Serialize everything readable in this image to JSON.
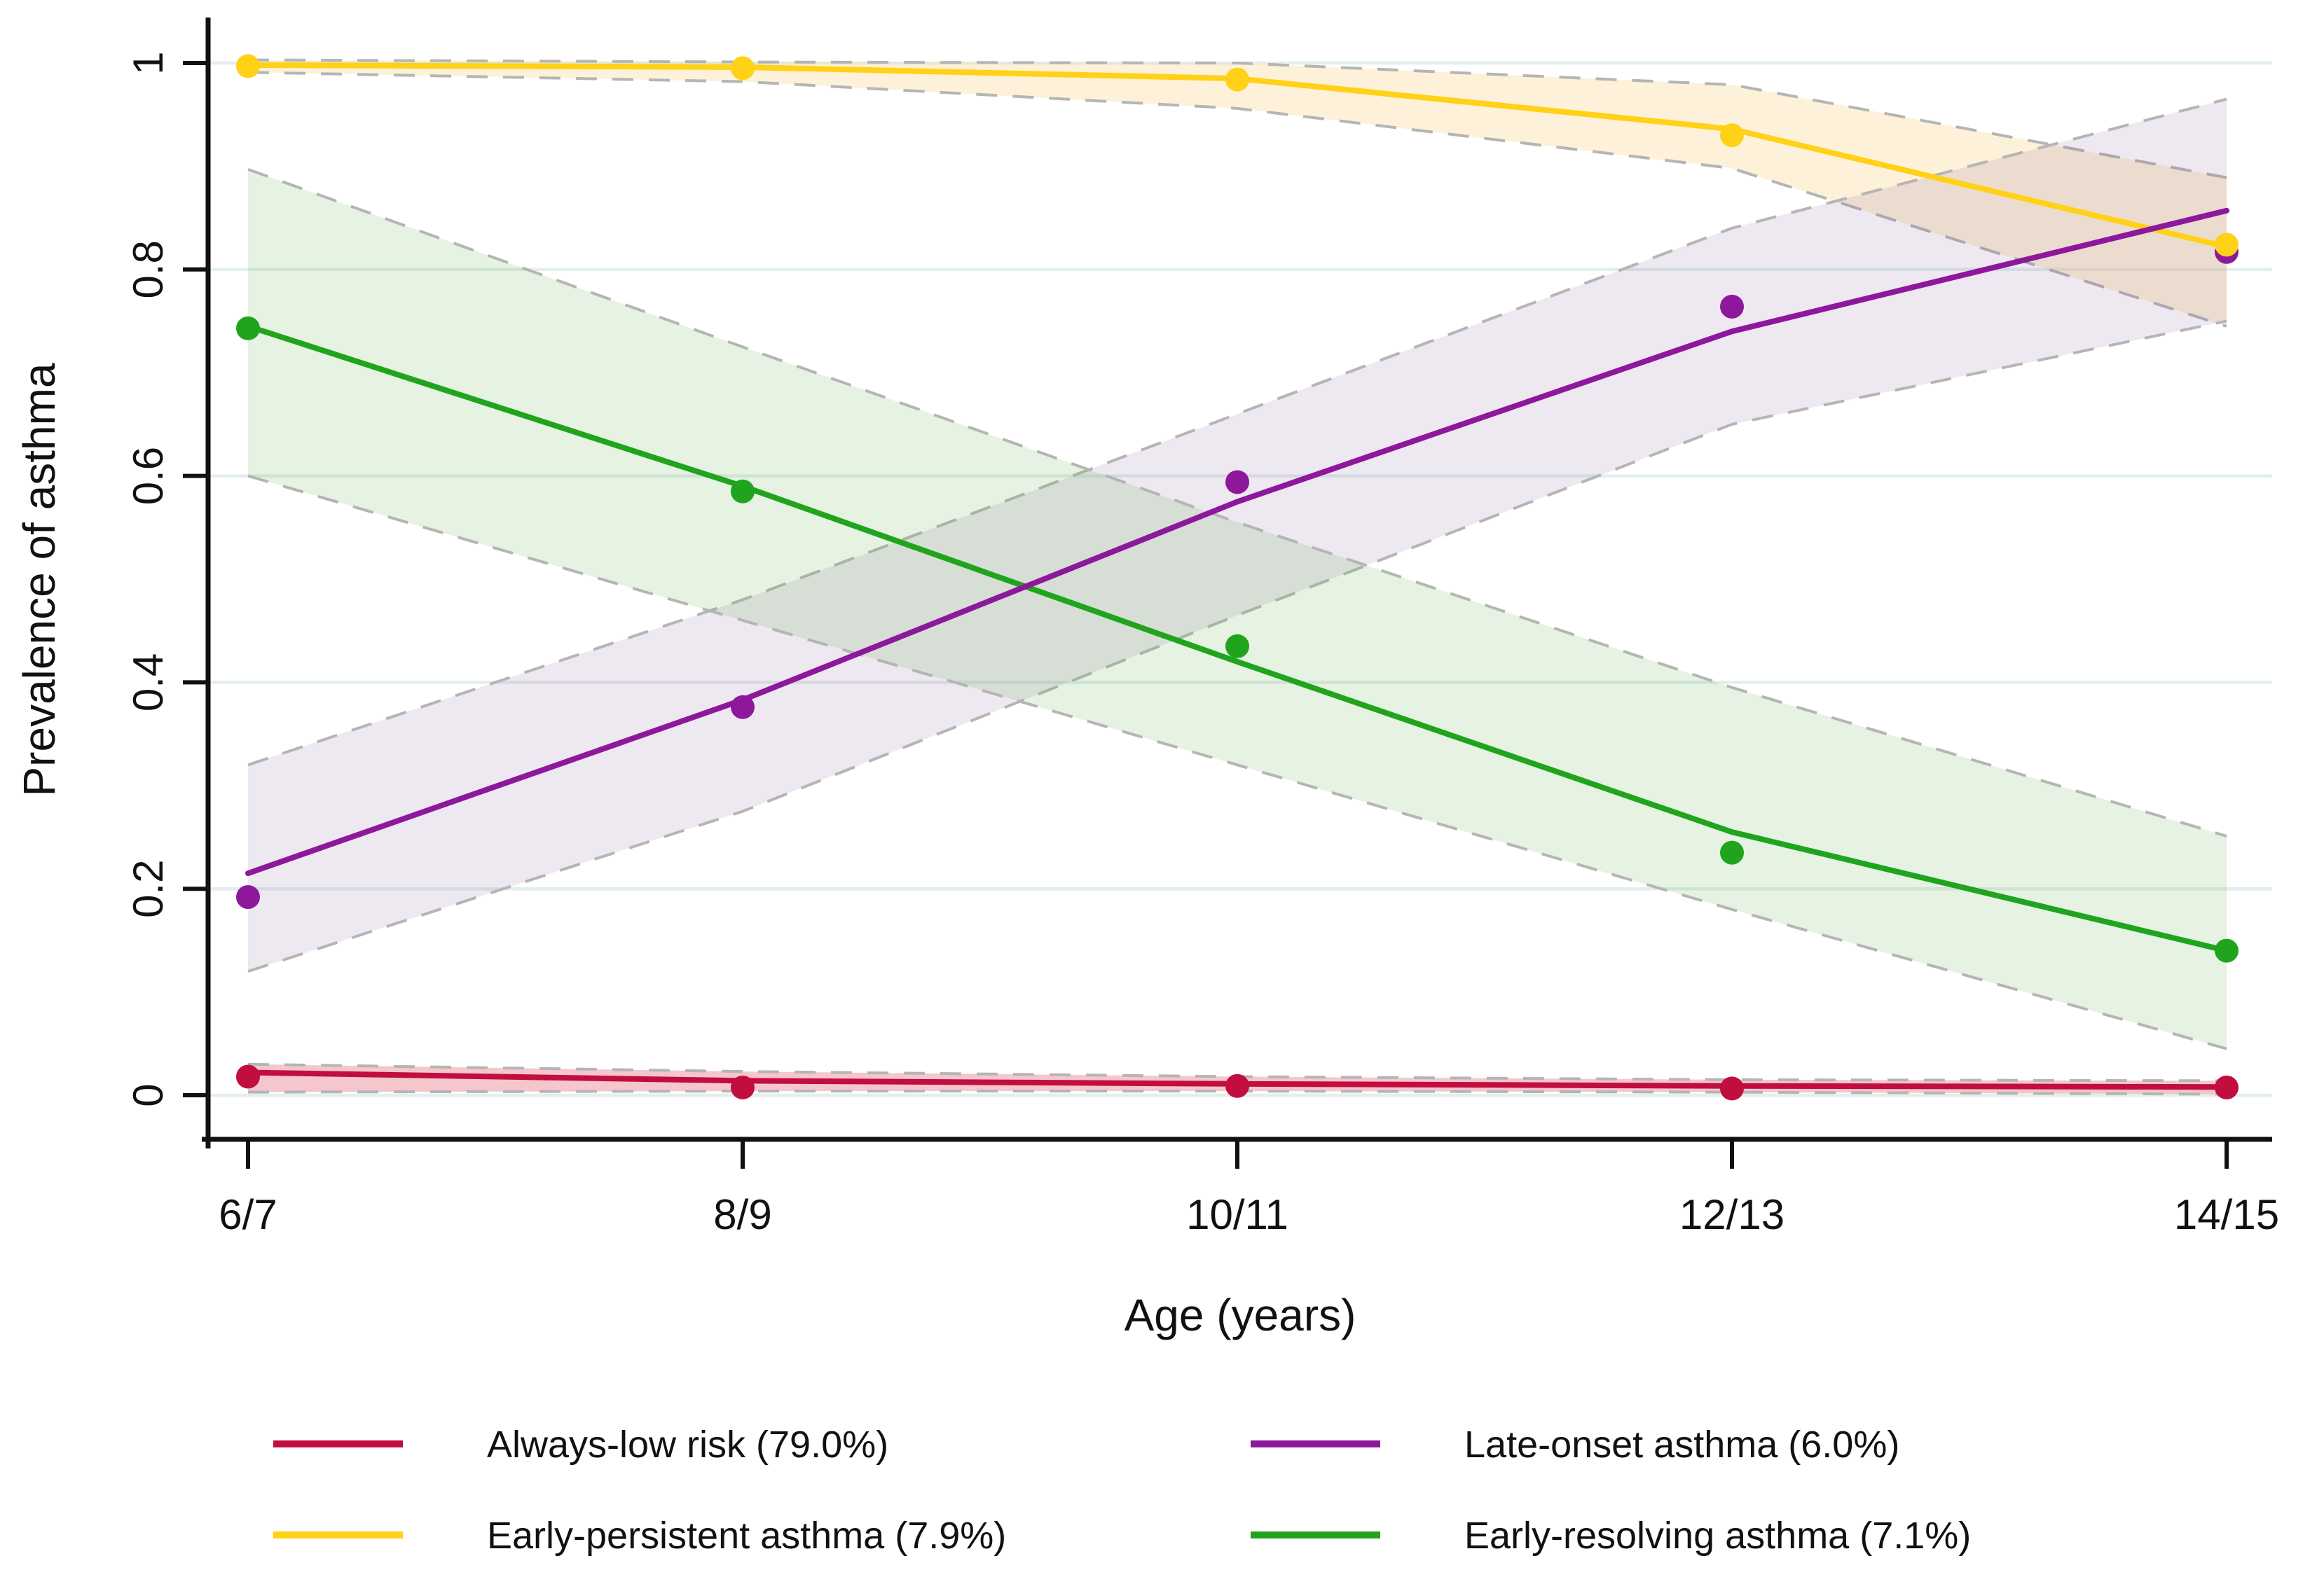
{
  "chart_data": {
    "type": "line",
    "title": "",
    "xlabel": "Age (years)",
    "ylabel": "Prevalence of asthma",
    "categories": [
      "6/7",
      "8/9",
      "10/11",
      "12/13",
      "14/15"
    ],
    "y_ticks": [
      {
        "v": 0.0,
        "label": "0"
      },
      {
        "v": 0.2,
        "label": "0.2"
      },
      {
        "v": 0.4,
        "label": "0.4"
      },
      {
        "v": 0.6,
        "label": "0.6"
      },
      {
        "v": 0.8,
        "label": "0.8"
      },
      {
        "v": 1.0,
        "label": "1"
      }
    ],
    "ylim": [
      0,
      1
    ],
    "grid": true,
    "legend_position": "bottom",
    "marker": "circle",
    "ci_style": "shaded band with dashed gray borders",
    "series": [
      {
        "name": "Always-low risk",
        "legend_label": "Always-low risk (79.0%)",
        "color": "#c10e3f",
        "band_fill": "rgba(225,65,88,0.30)",
        "line": [
          0.022,
          0.014,
          0.011,
          0.009,
          0.008
        ],
        "markers": [
          0.018,
          0.0075,
          0.009,
          0.0065,
          0.0075
        ],
        "ci_upper": [
          0.03,
          0.023,
          0.018,
          0.015,
          0.014
        ],
        "ci_lower": [
          0.003,
          0.004,
          0.004,
          0.003,
          0.001
        ]
      },
      {
        "name": "Early-persistent asthma",
        "legend_label": "Early-persistent asthma (7.9%)",
        "color": "#ffd117",
        "band_fill": "rgba(247,207,119,0.28)",
        "line": [
          0.998,
          0.996,
          0.985,
          0.936,
          0.822
        ],
        "markers": [
          0.997,
          0.995,
          0.984,
          0.93,
          0.824
        ],
        "ci_upper": [
          1.003,
          1.001,
          1.0,
          0.979,
          0.889
        ],
        "ci_lower": [
          0.991,
          0.982,
          0.956,
          0.898,
          0.745
        ]
      },
      {
        "name": "Late-onset asthma",
        "legend_label": "Late-onset asthma (6.0%)",
        "color": "#8d189c",
        "band_fill": "rgba(122,80,138,0.13)",
        "line": [
          0.215,
          0.383,
          0.575,
          0.74,
          0.857
        ],
        "markers": [
          0.192,
          0.376,
          0.594,
          0.764,
          0.817
        ],
        "ci_upper": [
          0.32,
          0.48,
          0.66,
          0.84,
          0.965
        ],
        "ci_lower": [
          0.12,
          0.275,
          0.465,
          0.65,
          0.75
        ]
      },
      {
        "name": "Early-resolving asthma",
        "legend_label": "Early-resolving asthma (7.1%)",
        "color": "#20a41e",
        "band_fill": "rgba(102,172,75,0.16)",
        "line": [
          0.745,
          0.59,
          0.42,
          0.255,
          0.14
        ],
        "markers": [
          0.743,
          0.585,
          0.435,
          0.235,
          0.14
        ],
        "ci_upper": [
          0.897,
          0.725,
          0.555,
          0.395,
          0.251
        ],
        "ci_lower": [
          0.6,
          0.46,
          0.32,
          0.18,
          0.045
        ]
      }
    ]
  }
}
